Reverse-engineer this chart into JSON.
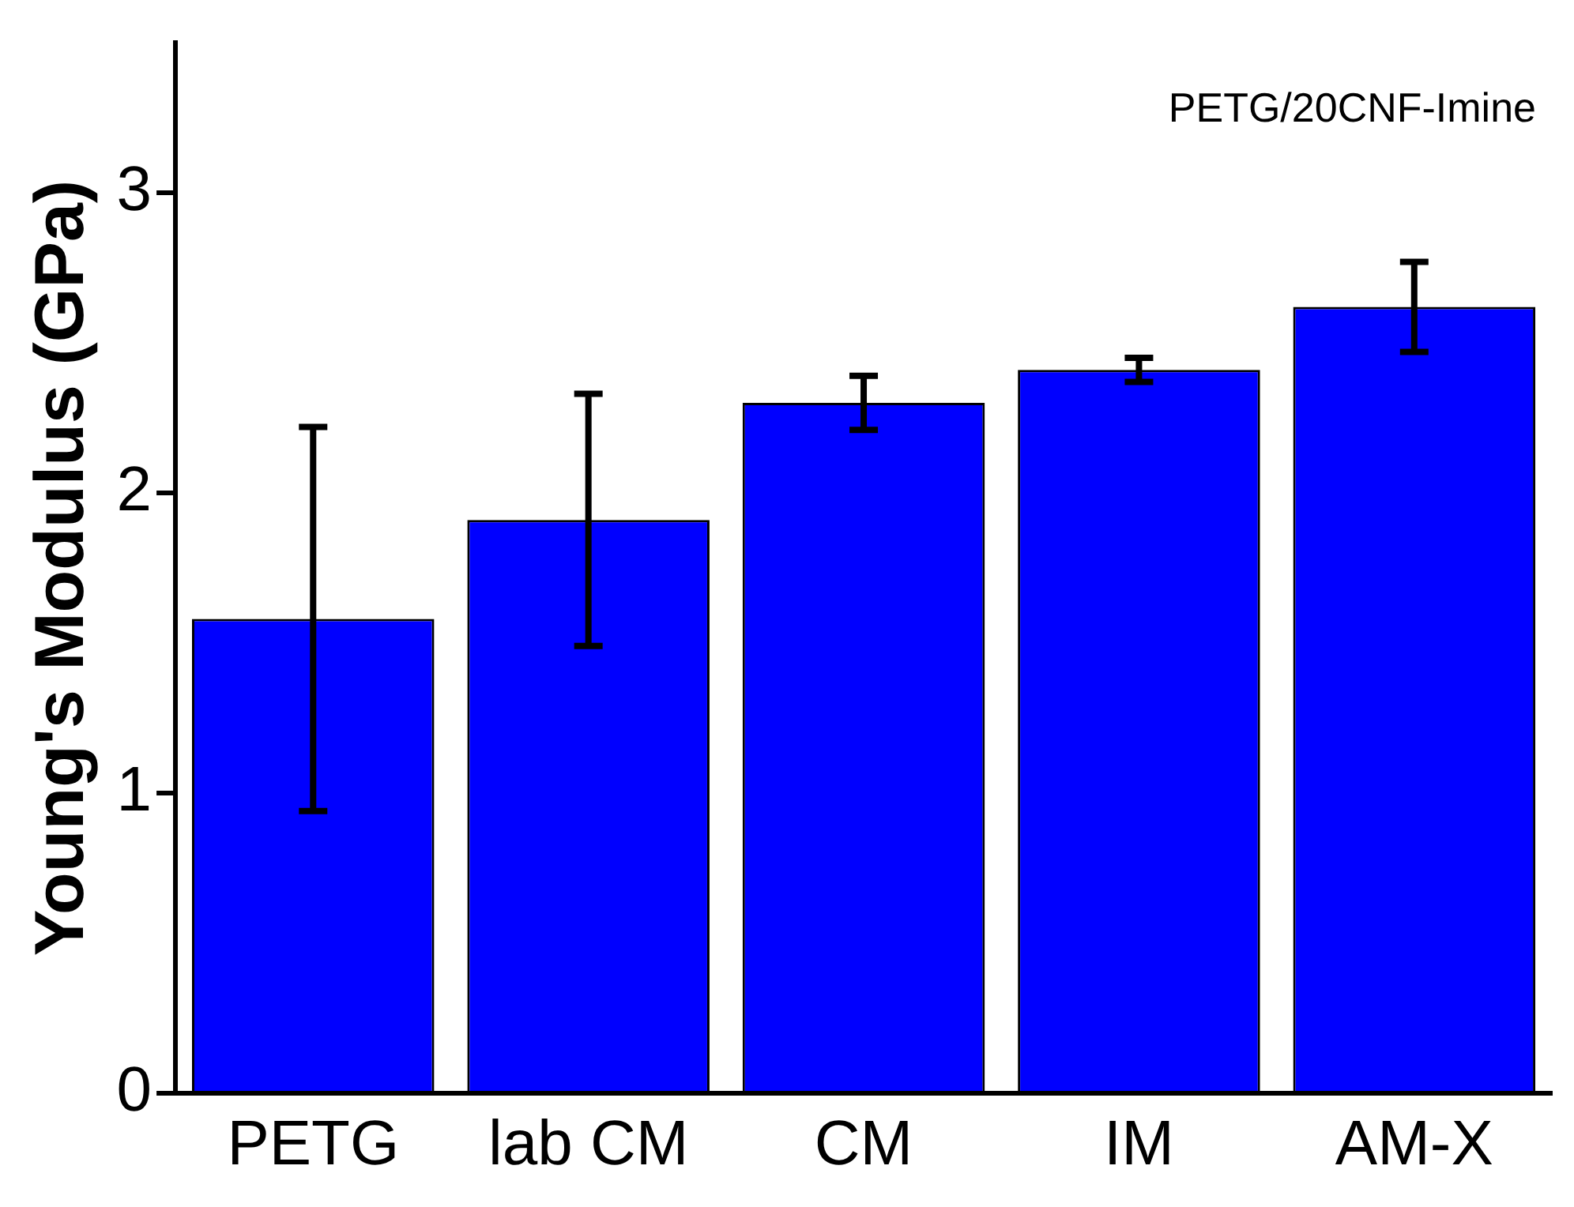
{
  "chart_data": {
    "type": "bar",
    "ylabel": "Young's Modulus (GPa)",
    "annotations": [
      "PETG/20CNF-Imine"
    ],
    "categories": [
      "PETG",
      "lab CM",
      "CM",
      "IM",
      "AM-X"
    ],
    "values": [
      1.58,
      1.91,
      2.3,
      2.41,
      2.62
    ],
    "errors": [
      0.64,
      0.42,
      0.09,
      0.04,
      0.15
    ],
    "color": "#0000ff",
    "ylim": [
      0,
      3.5
    ],
    "yticks": [
      0,
      1,
      2,
      3
    ],
    "grid": false,
    "legend": false
  }
}
